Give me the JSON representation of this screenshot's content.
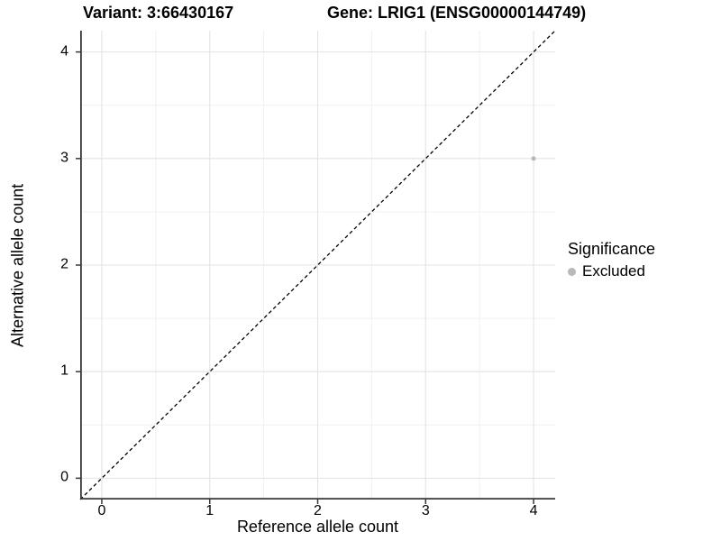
{
  "chart_data": {
    "type": "scatter",
    "title_left": "Variant: 3:66430167",
    "title_right": "Gene: LRIG1 (ENSG00000144749)",
    "xlabel": "Reference allele count",
    "ylabel": "Alternative allele count",
    "xlim": [
      -0.2,
      4.2
    ],
    "ylim": [
      -0.2,
      4.2
    ],
    "x_ticks": [
      0,
      1,
      2,
      3,
      4
    ],
    "y_ticks": [
      0,
      1,
      2,
      3,
      4
    ],
    "x_minor_ticks": [
      0.5,
      1.5,
      2.5,
      3.5
    ],
    "y_minor_ticks": [
      0.5,
      1.5,
      2.5,
      3.5
    ],
    "grid": true,
    "reference_line": {
      "type": "identity",
      "style": "dashed",
      "color": "#000000"
    },
    "series": [
      {
        "name": "Excluded",
        "color": "#b8b8b8",
        "points": [
          {
            "x": 4,
            "y": 3
          }
        ]
      }
    ],
    "legend": {
      "title": "Significance",
      "position": "right",
      "items": [
        {
          "label": "Excluded",
          "color": "#b8b8b8"
        }
      ]
    }
  },
  "colors": {
    "background": "#ffffff",
    "grid_major": "#e3e3e3",
    "grid_minor": "#f0f0f0",
    "axis_line": "#383838",
    "text": "#000000"
  }
}
